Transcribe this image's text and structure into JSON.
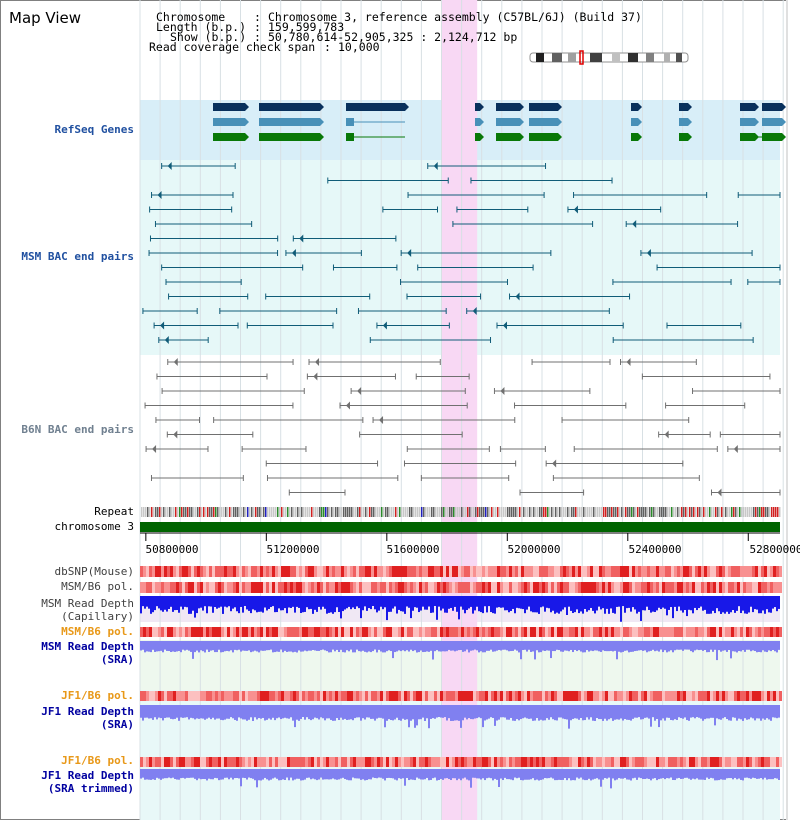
{
  "title": "Map View",
  "info": {
    "chromosome_key": "Chromosome",
    "chromosome_value": "Chromosome 3, reference assembly (C57BL/6J) (Build 37)",
    "length_key": "Length (b.p.)",
    "length_value": "159,599,783",
    "show_key": "Show (b.p.)",
    "show_value": "50,780,614-52,905,325 : 2,124,712 bp",
    "coverage_key": "Read coverage check span",
    "coverage_value": "10,000"
  },
  "tracks": {
    "refseq": "RefSeq Genes",
    "msm_bac": "MSM BAC end pairs",
    "b6n_bac": "B6N BAC end pairs",
    "repeat": "Repeat",
    "chromosome": "chromosome 3",
    "dbsnp": "dbSNP(Mouse)",
    "msm_b6_pol_1": "MSM/B6 pol.",
    "msm_depth_cap_1": "MSM Read Depth",
    "msm_depth_cap_2": "(Capillary)",
    "msm_b6_pol_2": "MSM/B6 pol.",
    "msm_depth_sra_1": "MSM Read Depth",
    "msm_depth_sra_2": "(SRA)",
    "jf1_b6_pol_1": "JF1/B6 pol.",
    "jf1_depth_sra_1": "JF1 Read Depth",
    "jf1_depth_sra_2": "(SRA)",
    "jf1_b6_pol_2": "JF1/B6 pol.",
    "jf1_depth_trim_1": "JF1 Read Depth",
    "jf1_depth_trim_2": "(SRA trimmed)"
  },
  "axis": {
    "ticks": [
      {
        "value": 50800000,
        "label": "50800000"
      },
      {
        "value": 51200000,
        "label": "51200000"
      },
      {
        "value": 51600000,
        "label": "51600000"
      },
      {
        "value": 52000000,
        "label": "52000000"
      },
      {
        "value": 52400000,
        "label": "52400000"
      },
      {
        "value": 52800000,
        "label": "52800000"
      }
    ],
    "range_start": 50780614,
    "range_end": 52905325
  },
  "highlight": {
    "start": 51780000,
    "end": 51900000
  },
  "colors": {
    "highlight": "#f8d8f4",
    "refseq_bg": "#d8eef8",
    "msm_bg": "#e6f8f8",
    "refseq_dark": "#08305c",
    "refseq_mid": "#4890b8",
    "refseq_green": "#087808",
    "msm_line": "#105c78",
    "b6n_line": "#707070",
    "chromosome": "#006400",
    "pol_red": "#e83838",
    "depth_blue": "#1818e8",
    "depth_light": "#8080f0",
    "msm_label": "#2050a0",
    "b6n_label": "#708090",
    "pol_label": "#e89818",
    "depth_label": "#0000a0"
  }
}
